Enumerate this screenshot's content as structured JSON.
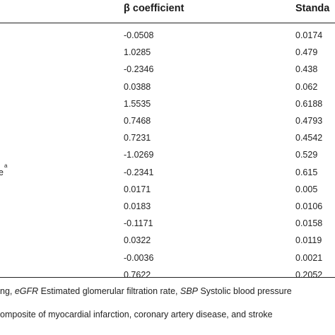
{
  "table": {
    "headers": {
      "beta": "β coefficient",
      "se": "Standa"
    },
    "rows": [
      {
        "beta": "-0.0508",
        "se": "0.0174"
      },
      {
        "beta": "1.0285",
        "se": "0.479"
      },
      {
        "beta": "-0.2346",
        "se": "0.438"
      },
      {
        "beta": "0.0388",
        "se": "0.062"
      },
      {
        "beta": "1.5535",
        "se": "0.6188"
      },
      {
        "beta": "0.7468",
        "se": "0.4793"
      },
      {
        "beta": "0.7231",
        "se": "0.4542"
      },
      {
        "beta": "-1.0269",
        "se": "0.529"
      },
      {
        "beta": "-0.2341",
        "se": "0.615",
        "label_fragment": "e",
        "label_sup": "a"
      },
      {
        "beta": "0.0171",
        "se": "0.005"
      },
      {
        "beta": "0.0183",
        "se": "0.0106"
      },
      {
        "beta": "-0.1171",
        "se": "0.0158"
      },
      {
        "beta": "0.0322",
        "se": "0.0119"
      },
      {
        "beta": "-0.0036",
        "se": "0.0021"
      },
      {
        "beta": "0.7622",
        "se": "0.2052"
      }
    ]
  },
  "footnotes": {
    "line1": {
      "prefix": "ng, ",
      "abbr1": "eGFR",
      "def1": " Estimated glomerular filtration rate, ",
      "abbr2": "SBP",
      "def2": " Systolic blood pressure"
    },
    "line2": "omposite of myocardial infarction, coronary artery disease, and stroke"
  }
}
